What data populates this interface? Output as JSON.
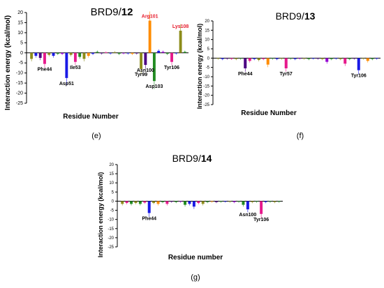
{
  "figure": {
    "panels": [
      {
        "id": "e",
        "title_prefix": "BRD9/",
        "title_bold": "12",
        "caption": "(e)",
        "ylabel": "Interaction energy (kcal/mol)",
        "xlabel": "Residue Number",
        "yticks": [
          20,
          15,
          10,
          5,
          0,
          -5,
          -10,
          -15,
          -20,
          -25
        ]
      },
      {
        "id": "f",
        "title_prefix": "BRD9/",
        "title_bold": "13",
        "caption": "(f)",
        "ylabel": "Interaction energy (kcal/mol)",
        "xlabel": "Residue Number",
        "yticks": [
          20,
          15,
          10,
          5,
          0,
          -5,
          -10,
          -15,
          -20,
          -25
        ]
      },
      {
        "id": "g",
        "title_prefix": "BRD9/",
        "title_bold": "14",
        "caption": "(g)",
        "ylabel": "Interaction energy (kcal/mol)",
        "xlabel": "Residue number",
        "yticks": [
          20,
          15,
          10,
          5,
          0,
          -5,
          -10,
          -15,
          -20,
          -25
        ]
      }
    ]
  },
  "chart_data": [
    {
      "type": "bar",
      "title": "BRD9/12",
      "xlabel": "Residue Number",
      "ylabel": "Interaction energy (kcal/mol)",
      "ylim": [
        -25,
        20
      ],
      "values": [
        -3,
        -1.5,
        -2.5,
        -5.5,
        -1,
        -1.5,
        -0.5,
        -0.5,
        -12.5,
        -1,
        -4.5,
        -2,
        -3,
        -1.5,
        -0.5,
        0.5,
        -0.3,
        0.2,
        -0.3,
        0.3,
        -0.5,
        -0.2,
        -0.3,
        -0.5,
        -0.3,
        -8,
        -6,
        16,
        -14,
        1,
        0.5,
        -0.5,
        -4.5,
        -0.3,
        11,
        0.5
      ],
      "colors": [
        "#8c8c1a",
        "#1a1ae6",
        "#4b0082",
        "#e6198c",
        "#8c8c1a",
        "#1a1ae6",
        "#228b22",
        "#9400d3",
        "#1a1ae6",
        "#8c8c1a",
        "#e6198c",
        "#228b22",
        "#8c8c1a",
        "#ff8c00",
        "#1a1ae6",
        "#228b22",
        "#4b0082",
        "#e6198c",
        "#1a1ae6",
        "#8c8c1a",
        "#228b22",
        "#9400d3",
        "#1a1ae6",
        "#ff8c00",
        "#4b0082",
        "#8c8c1a",
        "#4b0082",
        "#ff8c00",
        "#228b22",
        "#1a1ae6",
        "#9400d3",
        "#228b22",
        "#e6198c",
        "#1a1ae6",
        "#8c8c1a",
        "#228b22"
      ],
      "annotations": [
        {
          "label": "Phe44",
          "index": 3,
          "color": "#000000"
        },
        {
          "label": "Asp51",
          "index": 8,
          "color": "#000000"
        },
        {
          "label": "Ile53",
          "index": 10,
          "color": "#000000"
        },
        {
          "label": "Tyr99",
          "index": 25,
          "color": "#000000"
        },
        {
          "label": "Asn100",
          "index": 26,
          "color": "#000000"
        },
        {
          "label": "Arg101",
          "index": 27,
          "color": "#e6192b"
        },
        {
          "label": "Asp103",
          "index": 28,
          "color": "#000000"
        },
        {
          "label": "Tyr106",
          "index": 32,
          "color": "#000000"
        },
        {
          "label": "Lys108",
          "index": 34,
          "color": "#e6192b"
        }
      ]
    },
    {
      "type": "bar",
      "title": "BRD9/13",
      "xlabel": "Residue Number",
      "ylabel": "Interaction energy (kcal/mol)",
      "ylim": [
        -25,
        20
      ],
      "values": [
        -0.3,
        -0.5,
        -0.3,
        -0.4,
        -0.5,
        -0.3,
        -5.5,
        -1.5,
        -0.5,
        -1,
        -0.5,
        -3.5,
        -0.3,
        -0.5,
        -0.3,
        -5.5,
        -0.3,
        -0.5,
        -0.2,
        -0.3,
        -0.5,
        -0.2,
        -0.3,
        -0.5,
        -2,
        -0.5,
        -0.3,
        -0.5,
        -3,
        -0.5,
        -0.3,
        -6.5,
        -0.3,
        -1.5,
        -0.5,
        -0.3
      ],
      "colors": [
        "#8c8c1a",
        "#1a1ae6",
        "#4b0082",
        "#e6198c",
        "#8c8c1a",
        "#228b22",
        "#4b0082",
        "#e6198c",
        "#1a1ae6",
        "#8c8c1a",
        "#e6198c",
        "#ff8c00",
        "#228b22",
        "#1a1ae6",
        "#8c8c1a",
        "#e6198c",
        "#228b22",
        "#1a1ae6",
        "#9400d3",
        "#8c8c1a",
        "#228b22",
        "#1a1ae6",
        "#4b0082",
        "#8c8c1a",
        "#9400d3",
        "#228b22",
        "#1a1ae6",
        "#8c8c1a",
        "#e6198c",
        "#228b22",
        "#4b0082",
        "#1a1ae6",
        "#8c8c1a",
        "#ff8c00",
        "#228b22",
        "#1a1ae6"
      ],
      "annotations": [
        {
          "label": "Phe44",
          "index": 6,
          "color": "#000000"
        },
        {
          "label": "Tyr57",
          "index": 15,
          "color": "#000000"
        },
        {
          "label": "Tyr106",
          "index": 31,
          "color": "#000000"
        }
      ]
    },
    {
      "type": "bar",
      "title": "BRD9/14",
      "xlabel": "Residue number",
      "ylabel": "Interaction energy (kcal/mol)",
      "ylim": [
        -25,
        20
      ],
      "values": [
        -1.5,
        -1,
        -1.5,
        -1,
        -1.5,
        -0.8,
        -6.5,
        -1,
        -1.5,
        -0.5,
        -1.5,
        -0.3,
        -0.5,
        -0.3,
        -2,
        -1.5,
        -3,
        -1,
        -1.5,
        -0.5,
        -0.3,
        -0.5,
        -0.3,
        -0.2,
        -0.3,
        -0.5,
        -0.3,
        -2,
        -4.5,
        -0.5,
        -0.3,
        -7,
        -0.5,
        -0.3,
        -0.5,
        -0.3
      ],
      "colors": [
        "#8c8c1a",
        "#e6198c",
        "#228b22",
        "#8c8c1a",
        "#228b22",
        "#e6198c",
        "#1a1ae6",
        "#8c8c1a",
        "#ff8c00",
        "#228b22",
        "#e6198c",
        "#4b0082",
        "#228b22",
        "#9400d3",
        "#228b22",
        "#1a1ae6",
        "#1a1ae6",
        "#e6198c",
        "#8c8c1a",
        "#228b22",
        "#ff8c00",
        "#4b0082",
        "#228b22",
        "#1a1ae6",
        "#8c8c1a",
        "#9400d3",
        "#228b22",
        "#228b22",
        "#1a1ae6",
        "#8c8c1a",
        "#228b22",
        "#e6198c",
        "#1a1ae6",
        "#228b22",
        "#8c8c1a",
        "#228b22"
      ],
      "annotations": [
        {
          "label": "Phe44",
          "index": 6,
          "color": "#000000"
        },
        {
          "label": "Asn100",
          "index": 28,
          "color": "#000000"
        },
        {
          "label": "Tyr106",
          "index": 31,
          "color": "#000000"
        }
      ]
    }
  ]
}
